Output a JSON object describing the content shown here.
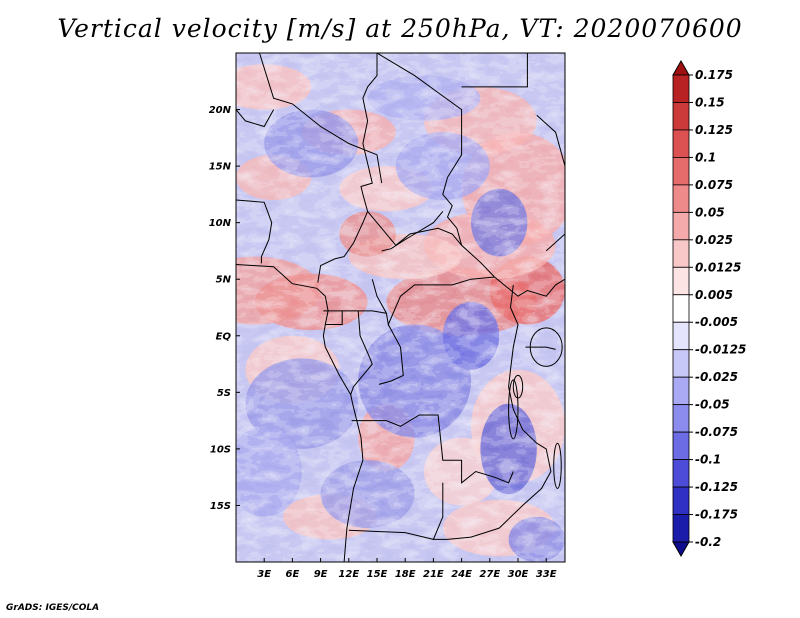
{
  "chart_data": {
    "type": "heatmap",
    "title": "Vertical velocity [m/s] at 250hPa, VT: 2020070600",
    "variable": "Vertical velocity",
    "units": "m/s",
    "level": "250hPa",
    "valid_time": "2020070600",
    "xlim": [
      0,
      35
    ],
    "ylim": [
      -20,
      25
    ],
    "x_ticks": [
      {
        "value": 3,
        "label": "3E"
      },
      {
        "value": 6,
        "label": "6E"
      },
      {
        "value": 9,
        "label": "9E"
      },
      {
        "value": 12,
        "label": "12E"
      },
      {
        "value": 15,
        "label": "15E"
      },
      {
        "value": 18,
        "label": "18E"
      },
      {
        "value": 21,
        "label": "21E"
      },
      {
        "value": 24,
        "label": "24E"
      },
      {
        "value": 27,
        "label": "27E"
      },
      {
        "value": 30,
        "label": "30E"
      },
      {
        "value": 33,
        "label": "33E"
      }
    ],
    "y_ticks": [
      {
        "value": 20,
        "label": "20N"
      },
      {
        "value": 15,
        "label": "15N"
      },
      {
        "value": 10,
        "label": "10N"
      },
      {
        "value": 5,
        "label": "5N"
      },
      {
        "value": 0,
        "label": "EQ"
      },
      {
        "value": -5,
        "label": "5S"
      },
      {
        "value": -10,
        "label": "10S"
      },
      {
        "value": -15,
        "label": "15S"
      }
    ],
    "colorbar": {
      "labels": [
        "0.175",
        "0.15",
        "0.125",
        "0.1",
        "0.075",
        "0.05",
        "0.025",
        "0.0125",
        "0.005",
        "-0.005",
        "-0.0125",
        "-0.025",
        "-0.05",
        "-0.075",
        "-0.1",
        "-0.125",
        "-0.175",
        "-0.2"
      ],
      "colors": [
        "#a01010",
        "#b82222",
        "#cc3a3a",
        "#dc5252",
        "#e66c6c",
        "#ee8a8a",
        "#f4aaaa",
        "#f8c8c8",
        "#fce4e4",
        "#ffffff",
        "#e4e4fc",
        "#c8c8f8",
        "#aaaaf4",
        "#8c8cee",
        "#6c6ce4",
        "#4c4cd8",
        "#3030c4",
        "#1c1caa",
        "#0c0c8c"
      ],
      "extend": "both",
      "orientation": "vertical",
      "placement": "right"
    }
  },
  "credit": "GrADS: IGES/COLA"
}
